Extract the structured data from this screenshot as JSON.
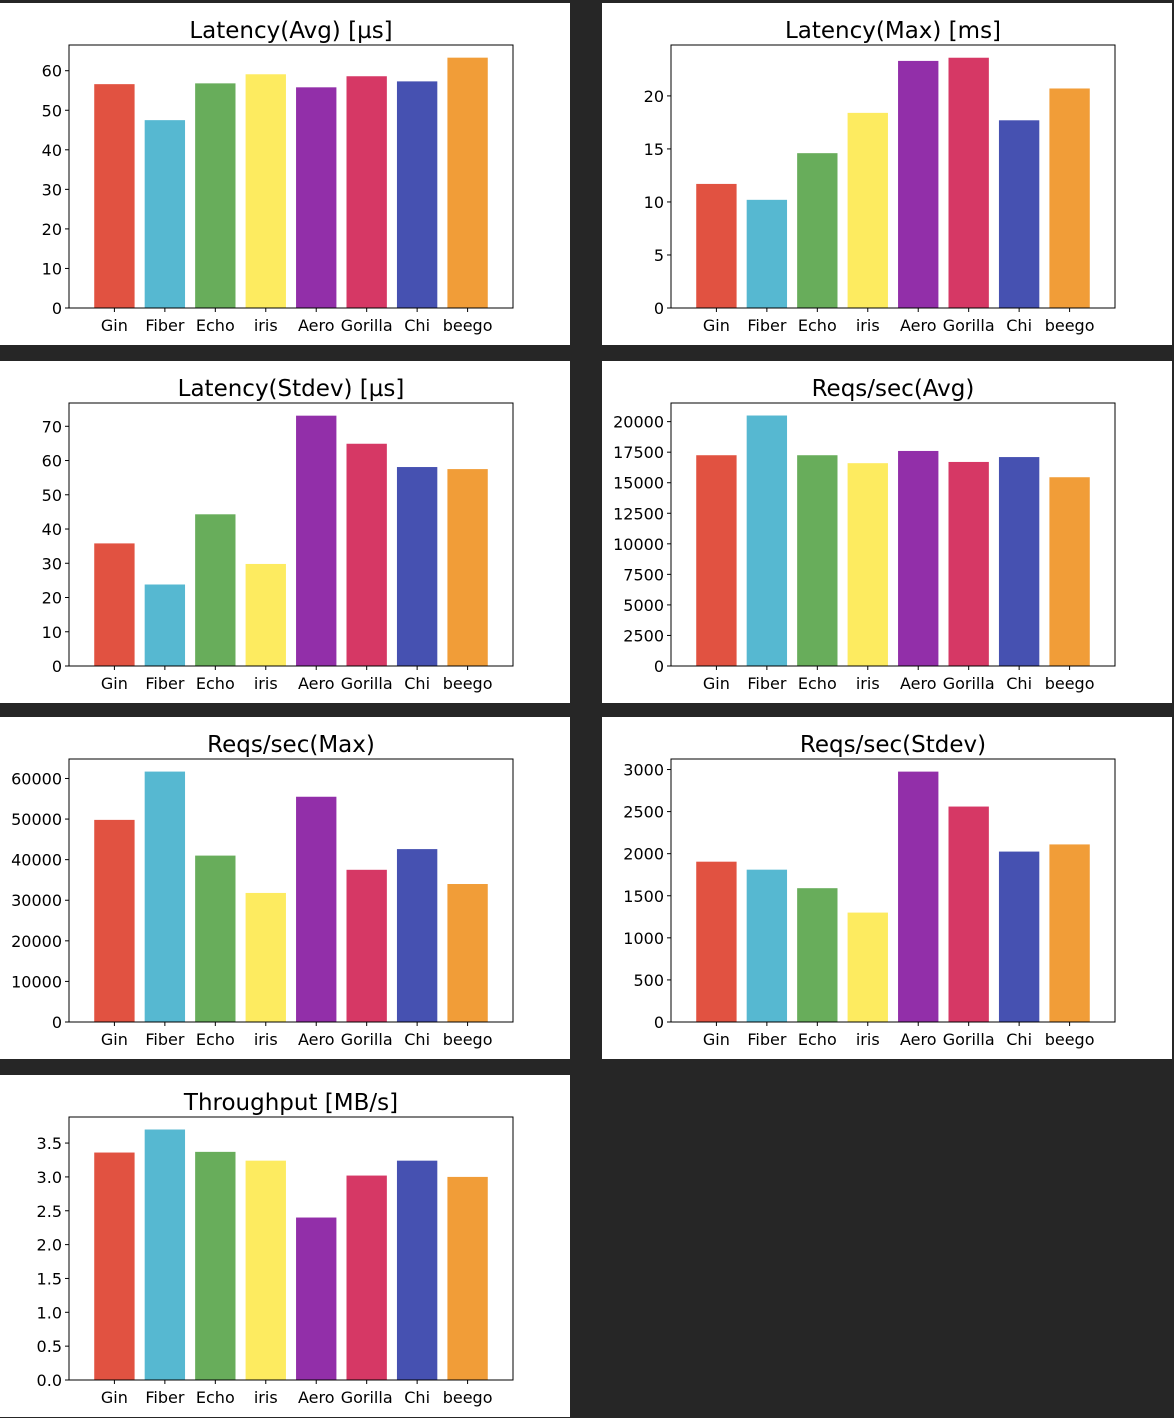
{
  "categories": [
    "Gin",
    "Fiber",
    "Echo",
    "iris",
    "Aero",
    "Gorilla",
    "Chi",
    "beego"
  ],
  "colors": [
    "#e15241",
    "#56b8d1",
    "#68ad5b",
    "#fdeb60",
    "#922fa9",
    "#d63865",
    "#4651b1",
    "#f19d38"
  ],
  "chart_data": [
    {
      "type": "bar",
      "title": "Latency(Avg) [µs]",
      "categories": [
        "Gin",
        "Fiber",
        "Echo",
        "iris",
        "Aero",
        "Gorilla",
        "Chi",
        "beego"
      ],
      "values": [
        56.6,
        47.5,
        56.8,
        59.1,
        55.8,
        58.6,
        57.3,
        63.3
      ],
      "ylim": [
        0,
        66.5
      ],
      "yticks": [
        0,
        10,
        20,
        30,
        40,
        50,
        60
      ],
      "ytick_labels": [
        "0",
        "10",
        "20",
        "30",
        "40",
        "50",
        "60"
      ],
      "xlabel": "",
      "ylabel": ""
    },
    {
      "type": "bar",
      "title": "Latency(Max) [ms]",
      "categories": [
        "Gin",
        "Fiber",
        "Echo",
        "iris",
        "Aero",
        "Gorilla",
        "Chi",
        "beego"
      ],
      "values": [
        11.7,
        10.2,
        14.6,
        18.4,
        23.3,
        23.6,
        17.7,
        20.7
      ],
      "ylim": [
        0,
        24.8
      ],
      "yticks": [
        0,
        5,
        10,
        15,
        20
      ],
      "ytick_labels": [
        "0",
        "5",
        "10",
        "15",
        "20"
      ],
      "xlabel": "",
      "ylabel": ""
    },
    {
      "type": "bar",
      "title": "Latency(Stdev) [µs]",
      "categories": [
        "Gin",
        "Fiber",
        "Echo",
        "iris",
        "Aero",
        "Gorilla",
        "Chi",
        "beego"
      ],
      "values": [
        35.8,
        23.8,
        44.3,
        29.8,
        73.1,
        64.9,
        58.1,
        57.5
      ],
      "ylim": [
        0,
        76.8
      ],
      "yticks": [
        0,
        10,
        20,
        30,
        40,
        50,
        60,
        70
      ],
      "ytick_labels": [
        "0",
        "10",
        "20",
        "30",
        "40",
        "50",
        "60",
        "70"
      ],
      "xlabel": "",
      "ylabel": ""
    },
    {
      "type": "bar",
      "title": "Reqs/sec(Avg)",
      "categories": [
        "Gin",
        "Fiber",
        "Echo",
        "iris",
        "Aero",
        "Gorilla",
        "Chi",
        "beego"
      ],
      "values": [
        17250,
        20500,
        17250,
        16600,
        17600,
        16700,
        17100,
        15450
      ],
      "ylim": [
        0,
        21525
      ],
      "yticks": [
        0,
        2500,
        5000,
        7500,
        10000,
        12500,
        15000,
        17500,
        20000
      ],
      "ytick_labels": [
        "0",
        "2500",
        "5000",
        "7500",
        "10000",
        "12500",
        "15000",
        "17500",
        "20000"
      ],
      "xlabel": "",
      "ylabel": ""
    },
    {
      "type": "bar",
      "title": "Reqs/sec(Max)",
      "categories": [
        "Gin",
        "Fiber",
        "Echo",
        "iris",
        "Aero",
        "Gorilla",
        "Chi",
        "beego"
      ],
      "values": [
        49800,
        61700,
        41000,
        31800,
        55500,
        37500,
        42600,
        34000
      ],
      "ylim": [
        0,
        64800
      ],
      "yticks": [
        0,
        10000,
        20000,
        30000,
        40000,
        50000,
        60000
      ],
      "ytick_labels": [
        "0",
        "10000",
        "20000",
        "30000",
        "40000",
        "50000",
        "60000"
      ],
      "xlabel": "",
      "ylabel": ""
    },
    {
      "type": "bar",
      "title": "Reqs/sec(Stdev)",
      "categories": [
        "Gin",
        "Fiber",
        "Echo",
        "iris",
        "Aero",
        "Gorilla",
        "Chi",
        "beego"
      ],
      "values": [
        1905,
        1810,
        1590,
        1300,
        2975,
        2560,
        2025,
        2110
      ],
      "ylim": [
        0,
        3125
      ],
      "yticks": [
        0,
        500,
        1000,
        1500,
        2000,
        2500,
        3000
      ],
      "ytick_labels": [
        "0",
        "500",
        "1000",
        "1500",
        "2000",
        "2500",
        "3000"
      ],
      "xlabel": "",
      "ylabel": ""
    },
    {
      "type": "bar",
      "title": "Throughput [MB/s]",
      "categories": [
        "Gin",
        "Fiber",
        "Echo",
        "iris",
        "Aero",
        "Gorilla",
        "Chi",
        "beego"
      ],
      "values": [
        3.36,
        3.7,
        3.37,
        3.24,
        2.4,
        3.02,
        3.24,
        3.0
      ],
      "ylim": [
        0,
        3.885
      ],
      "yticks": [
        0,
        0.5,
        1.0,
        1.5,
        2.0,
        2.5,
        3.0,
        3.5
      ],
      "ytick_labels": [
        "0.0",
        "0.5",
        "1.0",
        "1.5",
        "2.0",
        "2.5",
        "3.0",
        "3.5"
      ],
      "xlabel": "",
      "ylabel": ""
    }
  ]
}
